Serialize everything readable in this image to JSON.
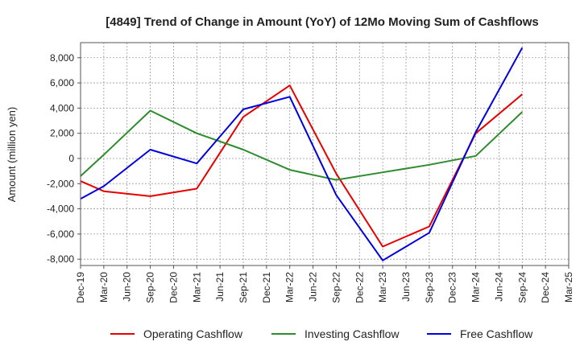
{
  "chart_data": {
    "type": "line",
    "title": "[4849]  Trend of Change in Amount (YoY) of 12Mo Moving Sum of Cashflows",
    "xlabel": "",
    "ylabel": "Amount (million yen)",
    "categories": [
      "Dec-19",
      "Mar-20",
      "Jun-20",
      "Sep-20",
      "Dec-20",
      "Mar-21",
      "Jun-21",
      "Sep-21",
      "Dec-21",
      "Mar-22",
      "Jun-22",
      "Sep-22",
      "Dec-22",
      "Mar-23",
      "Jun-23",
      "Sep-23",
      "Dec-23",
      "Mar-24",
      "Jun-24",
      "Sep-24",
      "Dec-24",
      "Mar-25"
    ],
    "ylim": [
      -8500,
      9200
    ],
    "yticks": [
      -8000,
      -6000,
      -4000,
      -2000,
      0,
      2000,
      4000,
      6000,
      8000
    ],
    "ytick_labels": [
      "-8,000",
      "-6,000",
      "-4,000",
      "-2,000",
      "0",
      "2,000",
      "4,000",
      "6,000",
      "8,000"
    ],
    "grid": true,
    "legend_position": "bottom",
    "series": [
      {
        "name": "Operating Cashflow",
        "color": "#e60000",
        "values": [
          -1800,
          -2600,
          null,
          -3000,
          null,
          -2400,
          null,
          3300,
          null,
          5800,
          null,
          -1200,
          null,
          -7000,
          null,
          -5400,
          null,
          2000,
          null,
          5100,
          null,
          null
        ]
      },
      {
        "name": "Investing Cashflow",
        "color": "#2e8b2e",
        "values": [
          -1400,
          300,
          null,
          3800,
          null,
          2000,
          null,
          700,
          null,
          -900,
          null,
          -1700,
          null,
          -1100,
          null,
          -500,
          null,
          200,
          null,
          3700,
          null,
          null
        ]
      },
      {
        "name": "Free Cashflow",
        "color": "#0000dd",
        "values": [
          -3200,
          -2200,
          null,
          700,
          null,
          -400,
          null,
          3900,
          null,
          4900,
          null,
          -2900,
          null,
          -8100,
          null,
          -5900,
          null,
          2100,
          null,
          8800,
          null,
          null
        ]
      }
    ]
  }
}
